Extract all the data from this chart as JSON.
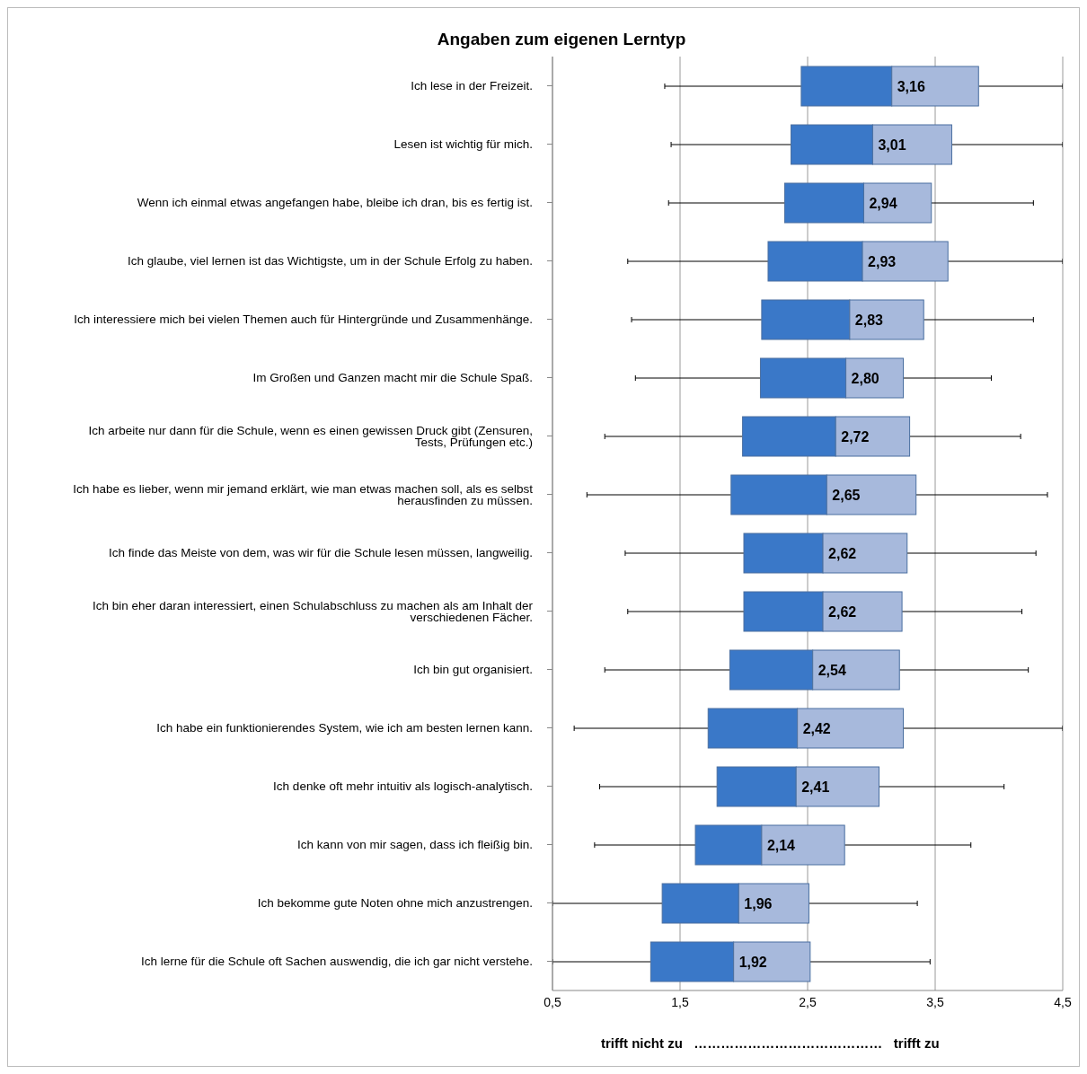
{
  "chart_data": {
    "type": "box",
    "orientation": "horizontal",
    "title": "Angaben zum eigenen Lerntyp",
    "xlabel": "trifft nicht zu   ……………………………………   trifft zu",
    "categories": [
      "Ich lese in der Freizeit.",
      "Lesen ist wichtig für mich.",
      "Wenn ich einmal etwas angefangen habe, bleibe ich dran, bis es fertig ist.",
      "Ich glaube, viel lernen ist das Wichtigste, um in der Schule Erfolg zu haben.",
      "Ich interessiere mich bei vielen Themen auch für Hintergründe und Zusammenhänge.",
      "Im Großen und Ganzen macht mir die Schule Spaß.",
      "Ich arbeite nur dann für die Schule, wenn es einen gewissen Druck gibt (Zensuren, Tests, Prüfungen etc.)",
      "Ich habe es lieber, wenn mir jemand erklärt, wie man etwas machen soll, als es selbst herausfinden zu müssen.",
      "Ich finde das Meiste von dem, was wir für die Schule lesen müssen, langweilig.",
      "Ich bin eher daran interessiert, einen Schulabschluss zu machen als am Inhalt der verschiedenen Fächer.",
      "Ich bin gut organisiert.",
      "Ich habe ein funktionierendes System, wie ich am besten lernen kann.",
      "Ich denke oft mehr intuitiv als logisch-analytisch.",
      "Ich kann von mir sagen, dass ich fleißig bin.",
      "Ich bekomme gute Noten ohne mich anzustrengen.",
      "Ich lerne für die Schule oft Sachen auswendig, die ich gar nicht verstehe."
    ],
    "boxes": [
      {
        "low": 1.38,
        "q1": 2.45,
        "median": 3.16,
        "q3": 3.84,
        "high": 4.5
      },
      {
        "low": 1.43,
        "q1": 2.37,
        "median": 3.01,
        "q3": 3.63,
        "high": 4.5
      },
      {
        "low": 1.41,
        "q1": 2.32,
        "median": 2.94,
        "q3": 3.47,
        "high": 4.27
      },
      {
        "low": 1.09,
        "q1": 2.19,
        "median": 2.93,
        "q3": 3.6,
        "high": 4.5
      },
      {
        "low": 1.12,
        "q1": 2.14,
        "median": 2.83,
        "q3": 3.41,
        "high": 4.27
      },
      {
        "low": 1.15,
        "q1": 2.13,
        "median": 2.8,
        "q3": 3.25,
        "high": 3.94
      },
      {
        "low": 0.91,
        "q1": 1.99,
        "median": 2.72,
        "q3": 3.3,
        "high": 4.17
      },
      {
        "low": 0.77,
        "q1": 1.9,
        "median": 2.65,
        "q3": 3.35,
        "high": 4.38
      },
      {
        "low": 1.07,
        "q1": 2.0,
        "median": 2.62,
        "q3": 3.28,
        "high": 4.29
      },
      {
        "low": 1.09,
        "q1": 2.0,
        "median": 2.62,
        "q3": 3.24,
        "high": 4.18
      },
      {
        "low": 0.91,
        "q1": 1.89,
        "median": 2.54,
        "q3": 3.22,
        "high": 4.23
      },
      {
        "low": 0.67,
        "q1": 1.72,
        "median": 2.42,
        "q3": 3.25,
        "high": 4.5
      },
      {
        "low": 0.87,
        "q1": 1.79,
        "median": 2.41,
        "q3": 3.06,
        "high": 4.04
      },
      {
        "low": 0.83,
        "q1": 1.62,
        "median": 2.14,
        "q3": 2.79,
        "high": 3.78
      },
      {
        "low": 0.5,
        "q1": 1.36,
        "median": 1.96,
        "q3": 2.51,
        "high": 3.36
      },
      {
        "low": 0.5,
        "q1": 1.27,
        "median": 1.92,
        "q3": 2.52,
        "high": 3.46
      }
    ],
    "value_labels": [
      "3,16",
      "3,01",
      "2,94",
      "2,93",
      "2,83",
      "2,80",
      "2,72",
      "2,65",
      "2,62",
      "2,62",
      "2,54",
      "2,42",
      "2,41",
      "2,14",
      "1,96",
      "1,92"
    ],
    "color": "#3a78c8",
    "xlim": [
      0.5,
      4.5
    ],
    "xticks": [
      {
        "value": 0.5,
        "label": "0,5"
      },
      {
        "value": 1.5,
        "label": "1,5"
      },
      {
        "value": 2.5,
        "label": "2,5"
      },
      {
        "value": 3.5,
        "label": "3,5"
      },
      {
        "value": 4.5,
        "label": "4,5"
      }
    ],
    "grid": "x"
  }
}
